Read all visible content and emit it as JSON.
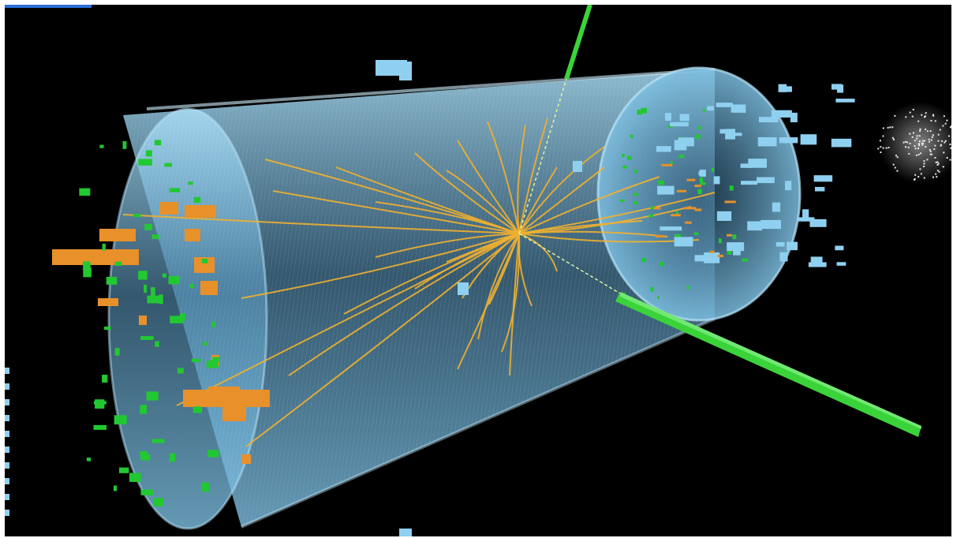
{
  "image": {
    "subject": "particle-collision-event-display",
    "colors": {
      "background": "#000000",
      "detector_body": "#8ec8e8",
      "detector_edge": "#b8e4f8",
      "track": "#f0b030",
      "calorimeter_orange": "#e8902a",
      "calorimeter_green": "#22c832",
      "green_beam": "#3ad43a",
      "light_blue_block": "#8fd0f0",
      "noise": "#e8e8e8"
    },
    "icons": [
      "green-jet-beam",
      "orange-energy-blocks",
      "green-energy-blocks",
      "light-blue-energy-blocks",
      "yellow-tracks"
    ]
  }
}
